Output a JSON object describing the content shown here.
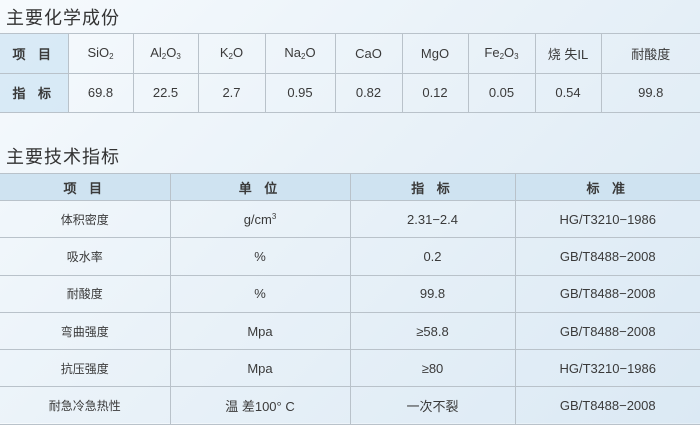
{
  "composition": {
    "title": "主要化学成份",
    "row_labels": [
      "项 目",
      "指 标"
    ],
    "items": [
      {
        "base": "SiO",
        "sub": "2",
        "after": ""
      },
      {
        "base": "Al",
        "sub": "2",
        "after": "O",
        "sub2": "3"
      },
      {
        "base": "K",
        "sub": "2",
        "after": "O"
      },
      {
        "base": "Na",
        "sub": "2",
        "after": "O"
      },
      {
        "base": "CaO"
      },
      {
        "base": "MgO"
      },
      {
        "base": "Fe",
        "sub": "2",
        "after": "O",
        "sub2": "3"
      },
      {
        "base": "烧 失IL"
      },
      {
        "base": "耐酸度"
      }
    ],
    "values": [
      "69.8",
      "22.5",
      "2.7",
      "0.95",
      "0.82",
      "0.12",
      "0.05",
      "0.54",
      "99.8"
    ]
  },
  "specs": {
    "title": "主要技术指标",
    "headers": [
      "项 目",
      "单 位",
      "指 标",
      "标 准"
    ],
    "rows": [
      {
        "item": "体积密度",
        "unit": "g/cm",
        "unit_sup": "3",
        "value": "2.31−2.4",
        "standard": "HG/T3210−1986"
      },
      {
        "item": "吸水率",
        "unit": "%",
        "value": "0.2",
        "standard": "GB/T8488−2008"
      },
      {
        "item": "耐酸度",
        "unit": "%",
        "value": "99.8",
        "standard": "GB/T8488−2008"
      },
      {
        "item": "弯曲强度",
        "unit": "Mpa",
        "value": "≥58.8",
        "standard": "GB/T8488−2008"
      },
      {
        "item": "抗压强度",
        "unit": "Mpa",
        "value": "≥80",
        "standard": "HG/T3210−1986"
      },
      {
        "item": "耐急冷急热性",
        "unit": "温 差100° C",
        "value": "一次不裂",
        "standard": "GB/T8488−2008"
      }
    ]
  }
}
